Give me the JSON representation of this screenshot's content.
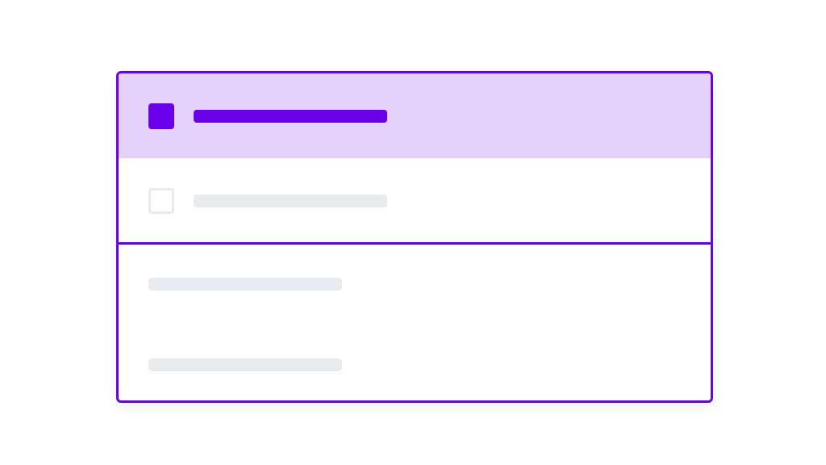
{
  "colors": {
    "accent": "#6a00ea",
    "selected_bg": "#e3d1fa",
    "placeholder": "#e8ebf0"
  },
  "list": {
    "items": [
      {
        "checked": true,
        "icon": "checkbox-checked"
      },
      {
        "checked": false,
        "icon": "checkbox-unchecked"
      }
    ],
    "secondary_rows": 2
  }
}
